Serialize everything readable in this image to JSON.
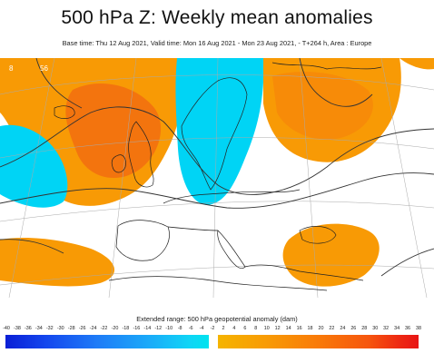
{
  "title": "500 hPa Z: Weekly mean anomalies",
  "subtitle": "Base time: Thu 12 Aug 2021, Valid time: Mon 16 Aug 2021 - Mon 23 Aug 2021, - T+264 h, Area : Europe",
  "map": {
    "projection": "polar stereographic (Europe)",
    "fill_colors": {
      "negative": "#00d4f5",
      "negative_light": "#3fd7f6",
      "positive": "#f89a05",
      "positive_strong": "#f26a10",
      "coast": "#222222",
      "graticule": "#999999",
      "contour": "#333333"
    },
    "contour_labels": [
      "8",
      "56"
    ]
  },
  "legend": {
    "title": "Extended range: 500 hPa geopotential anomaly (dam)",
    "ticks": [
      "-40",
      "-38",
      "-36",
      "-34",
      "-32",
      "-30",
      "-28",
      "-26",
      "-24",
      "-22",
      "-20",
      "-18",
      "-16",
      "-14",
      "-12",
      "-10",
      "-8",
      "-6",
      "-4",
      "-2",
      "2",
      "4",
      "6",
      "8",
      "10",
      "12",
      "14",
      "16",
      "18",
      "20",
      "22",
      "24",
      "26",
      "28",
      "30",
      "32",
      "34",
      "36",
      "38"
    ],
    "negative_color_start": "#0a1fd6",
    "negative_color_end": "#00e3ef",
    "positive_color_start": "#f5b400",
    "positive_color_end": "#e81515"
  }
}
